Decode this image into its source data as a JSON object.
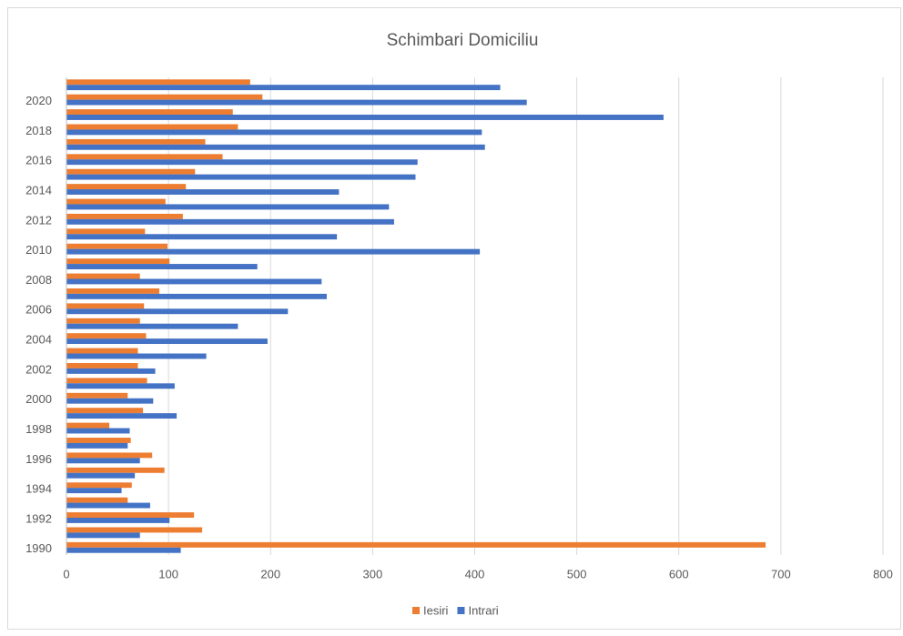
{
  "chart_data": {
    "type": "hbar",
    "title": "Schimbari Domiciliu",
    "categories": [
      "1990",
      null,
      "1992",
      null,
      "1994",
      null,
      "1996",
      null,
      "1998",
      null,
      "2000",
      null,
      "2002",
      null,
      "2004",
      null,
      "2006",
      null,
      "2008",
      null,
      "2010",
      null,
      "2012",
      null,
      "2014",
      null,
      "2016",
      null,
      "2018",
      null,
      "2020",
      null
    ],
    "series": [
      {
        "name": "Iesiri",
        "color": "#ed7d31",
        "values": [
          685,
          133,
          125,
          60,
          64,
          96,
          84,
          63,
          42,
          75,
          60,
          79,
          70,
          70,
          78,
          72,
          76,
          91,
          72,
          101,
          99,
          77,
          114,
          97,
          117,
          126,
          153,
          136,
          168,
          163,
          192,
          180
        ]
      },
      {
        "name": "Intrari",
        "color": "#4472c4",
        "values": [
          112,
          72,
          101,
          82,
          54,
          67,
          72,
          60,
          62,
          108,
          85,
          106,
          87,
          137,
          197,
          168,
          217,
          255,
          250,
          187,
          405,
          265,
          321,
          316,
          267,
          342,
          344,
          410,
          407,
          585,
          451,
          425
        ]
      }
    ],
    "xlim": [
      0,
      800
    ],
    "xticks": [
      0,
      100,
      200,
      300,
      400,
      500,
      600,
      700,
      800
    ],
    "grid": true,
    "legend": "bottom"
  }
}
